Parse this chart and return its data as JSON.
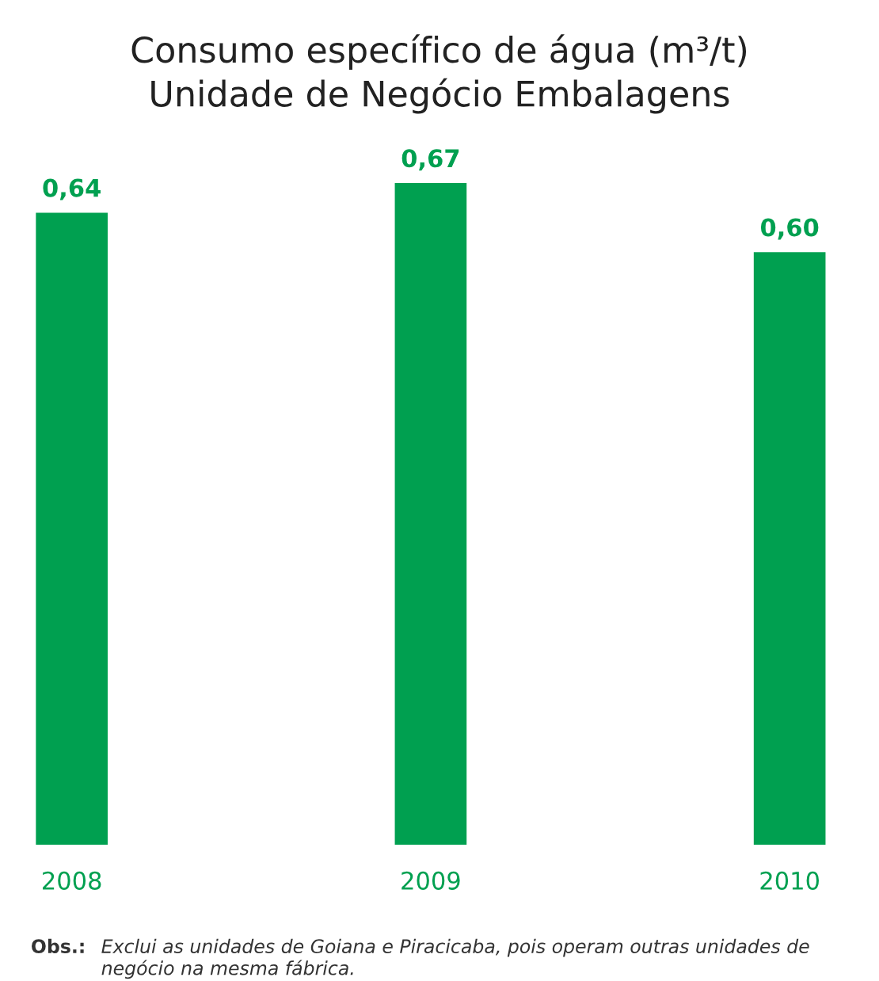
{
  "chart_data": {
    "type": "bar",
    "title": "Consumo específico de água (m³/t)\nUnidade de Negócio Embalagens",
    "categories": [
      "2008",
      "2009",
      "2010"
    ],
    "values": [
      0.64,
      0.67,
      0.6
    ],
    "value_labels": [
      "0,64",
      "0,67",
      "0,60"
    ],
    "color": "#00a050",
    "annotations": [
      "Obs.:",
      "Exclui as unidades de Goiana e Piracicaba, pois operam outras unidades de negócio na mesma fábrica."
    ]
  }
}
